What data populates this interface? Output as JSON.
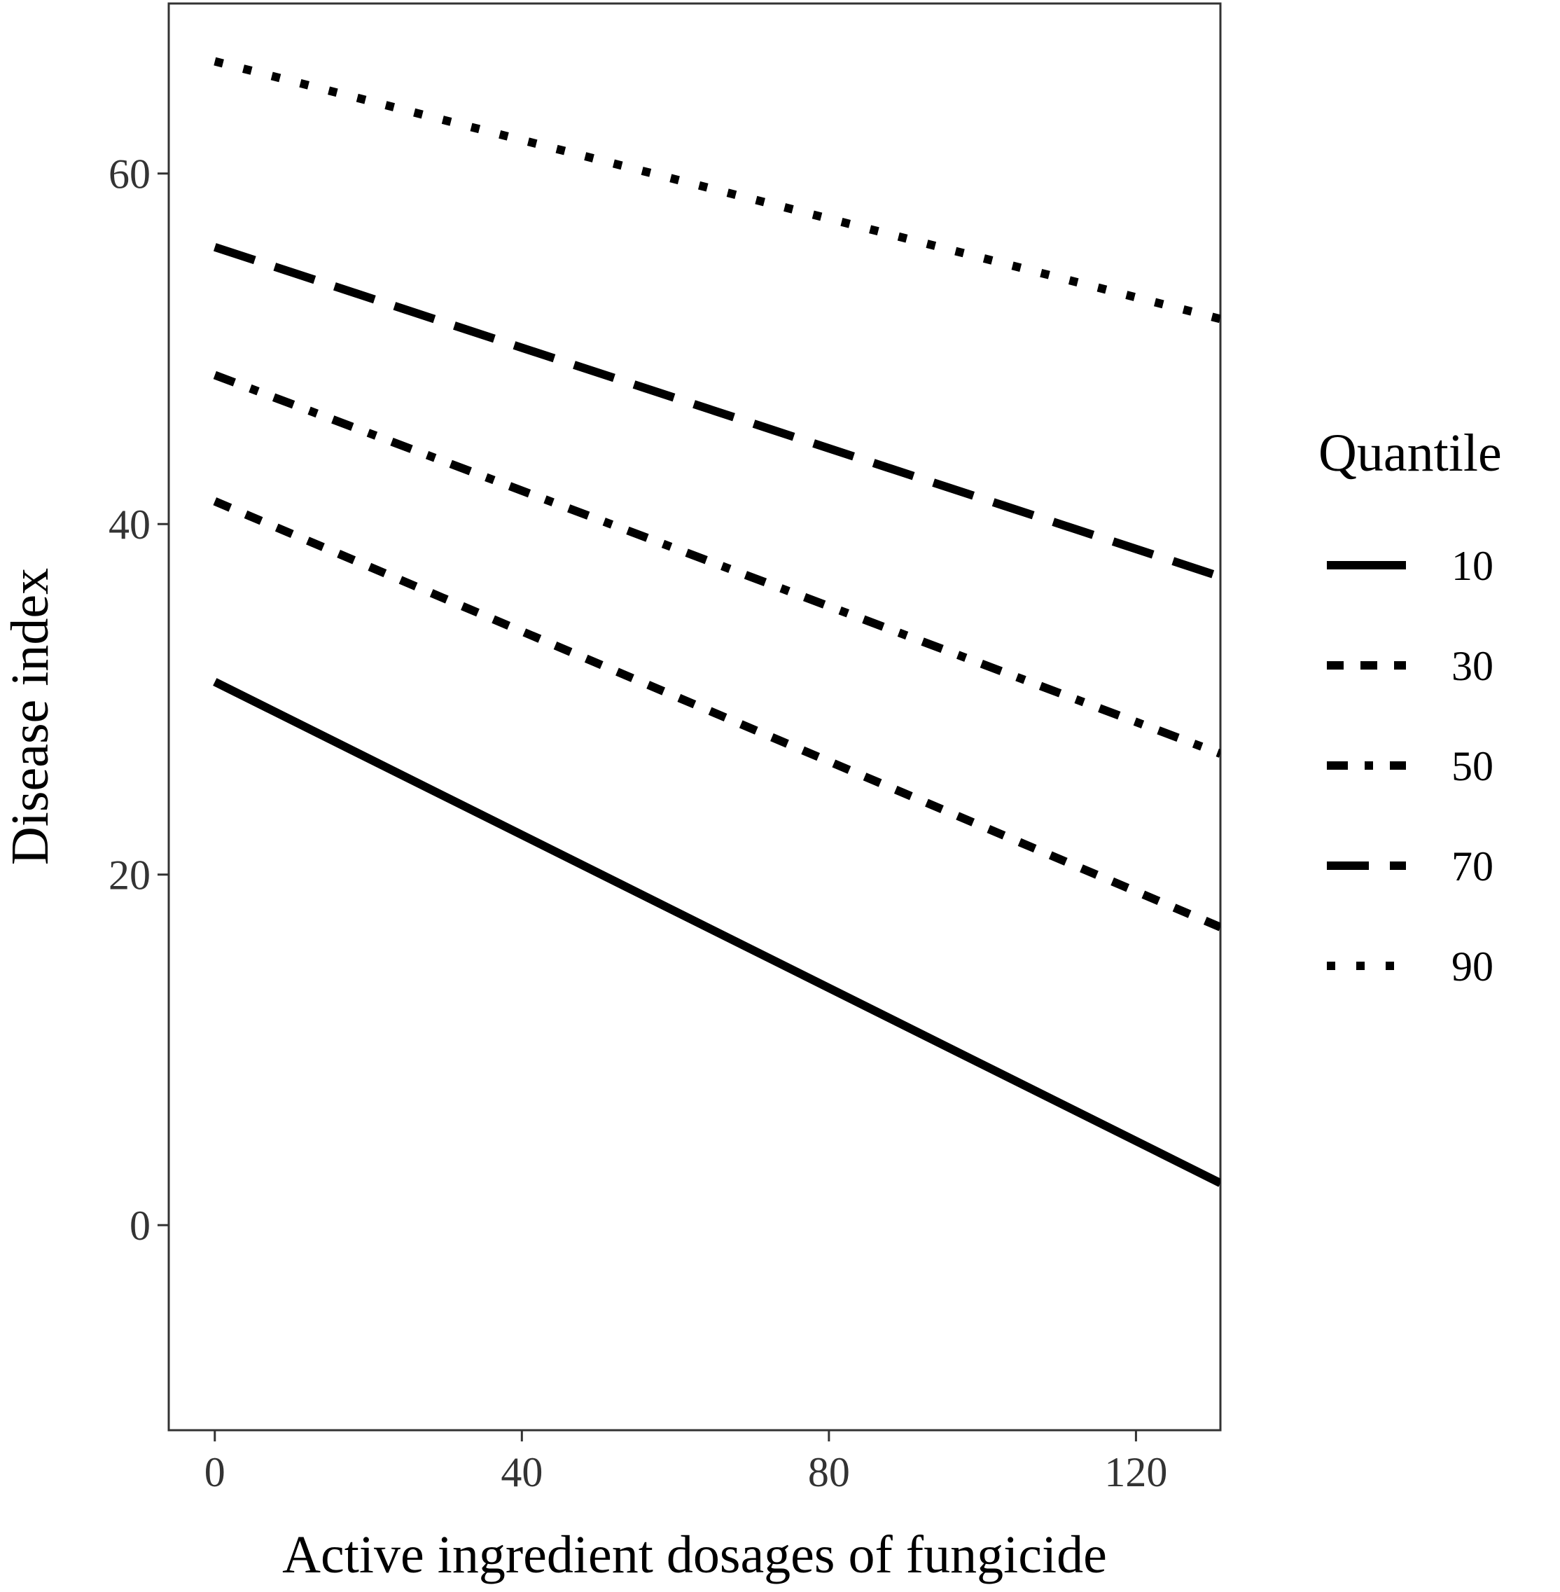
{
  "chart_data": {
    "type": "line",
    "title": "",
    "xlabel": "Active ingredient dosages of fungicide",
    "ylabel": "Disease index",
    "xlim": [
      -6,
      131
    ],
    "ylim": [
      -11.7,
      69.7
    ],
    "xticks": [
      0,
      40,
      80,
      120
    ],
    "yticks": [
      0,
      20,
      40,
      60
    ],
    "grid": false,
    "legend": {
      "title": "Quantile",
      "position": "right"
    },
    "series": [
      {
        "name": "10",
        "linetype": "solid",
        "x": [
          0,
          131
        ],
        "y": [
          31.0,
          2.4
        ]
      },
      {
        "name": "30",
        "linetype": "dashed",
        "x": [
          0,
          131
        ],
        "y": [
          41.3,
          17.0
        ]
      },
      {
        "name": "50",
        "linetype": "dashdot",
        "x": [
          0,
          131
        ],
        "y": [
          48.5,
          26.9
        ]
      },
      {
        "name": "70",
        "linetype": "longdash",
        "x": [
          0,
          131
        ],
        "y": [
          55.8,
          37.0
        ]
      },
      {
        "name": "90",
        "linetype": "dotted",
        "x": [
          0,
          131
        ],
        "y": [
          66.4,
          51.7
        ]
      }
    ]
  }
}
